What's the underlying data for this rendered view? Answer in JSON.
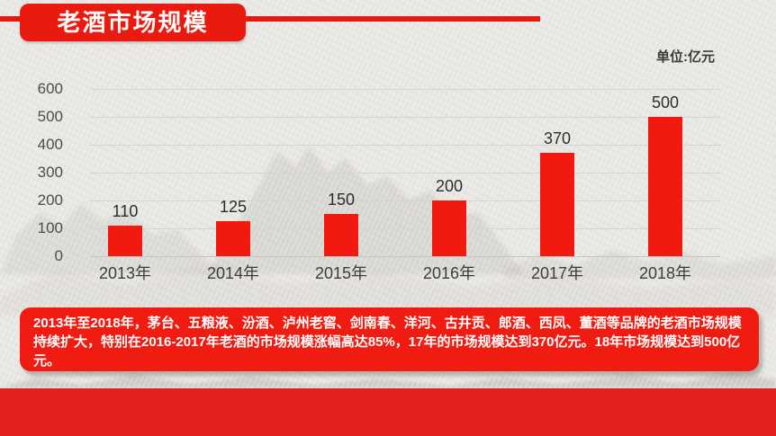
{
  "title": "老酒市场规模",
  "unit_label": "单位:亿元",
  "chart_data": {
    "type": "bar",
    "categories": [
      "2013年",
      "2014年",
      "2015年",
      "2016年",
      "2017年",
      "2018年"
    ],
    "values": [
      110,
      125,
      150,
      200,
      370,
      500
    ],
    "data_labels": [
      "110",
      "125",
      "150",
      "200",
      "370",
      "500"
    ],
    "title": "老酒市场规模",
    "unit": "亿元",
    "xlabel": "",
    "ylabel": "",
    "ylim": [
      0,
      600
    ],
    "ytick_step": 100,
    "yticks": [
      "0",
      "100",
      "200",
      "300",
      "400",
      "500",
      "600"
    ],
    "grid": true,
    "legend": false,
    "bar_color": "#f2190e"
  },
  "summary": {
    "text": "2013年至2018年，茅台、五粮液、汾酒、泸州老窖、剑南春、洋河、古井贡、郎酒、西凤、董酒等品牌的老酒市场规模持续扩大，特别在2016-2017年老酒的市场规模涨幅高达85%，17年的市场规模达到370亿元。18年市场规模达到500亿元。"
  },
  "colors": {
    "accent_red": "#ea1a0f",
    "bar_red": "#f2190e",
    "summary_red": "#f01c12",
    "band_red": "#e2211c",
    "background": "#e9e7e3",
    "gridline": "#d6d4d0",
    "text_dark": "#3c3c3c"
  }
}
